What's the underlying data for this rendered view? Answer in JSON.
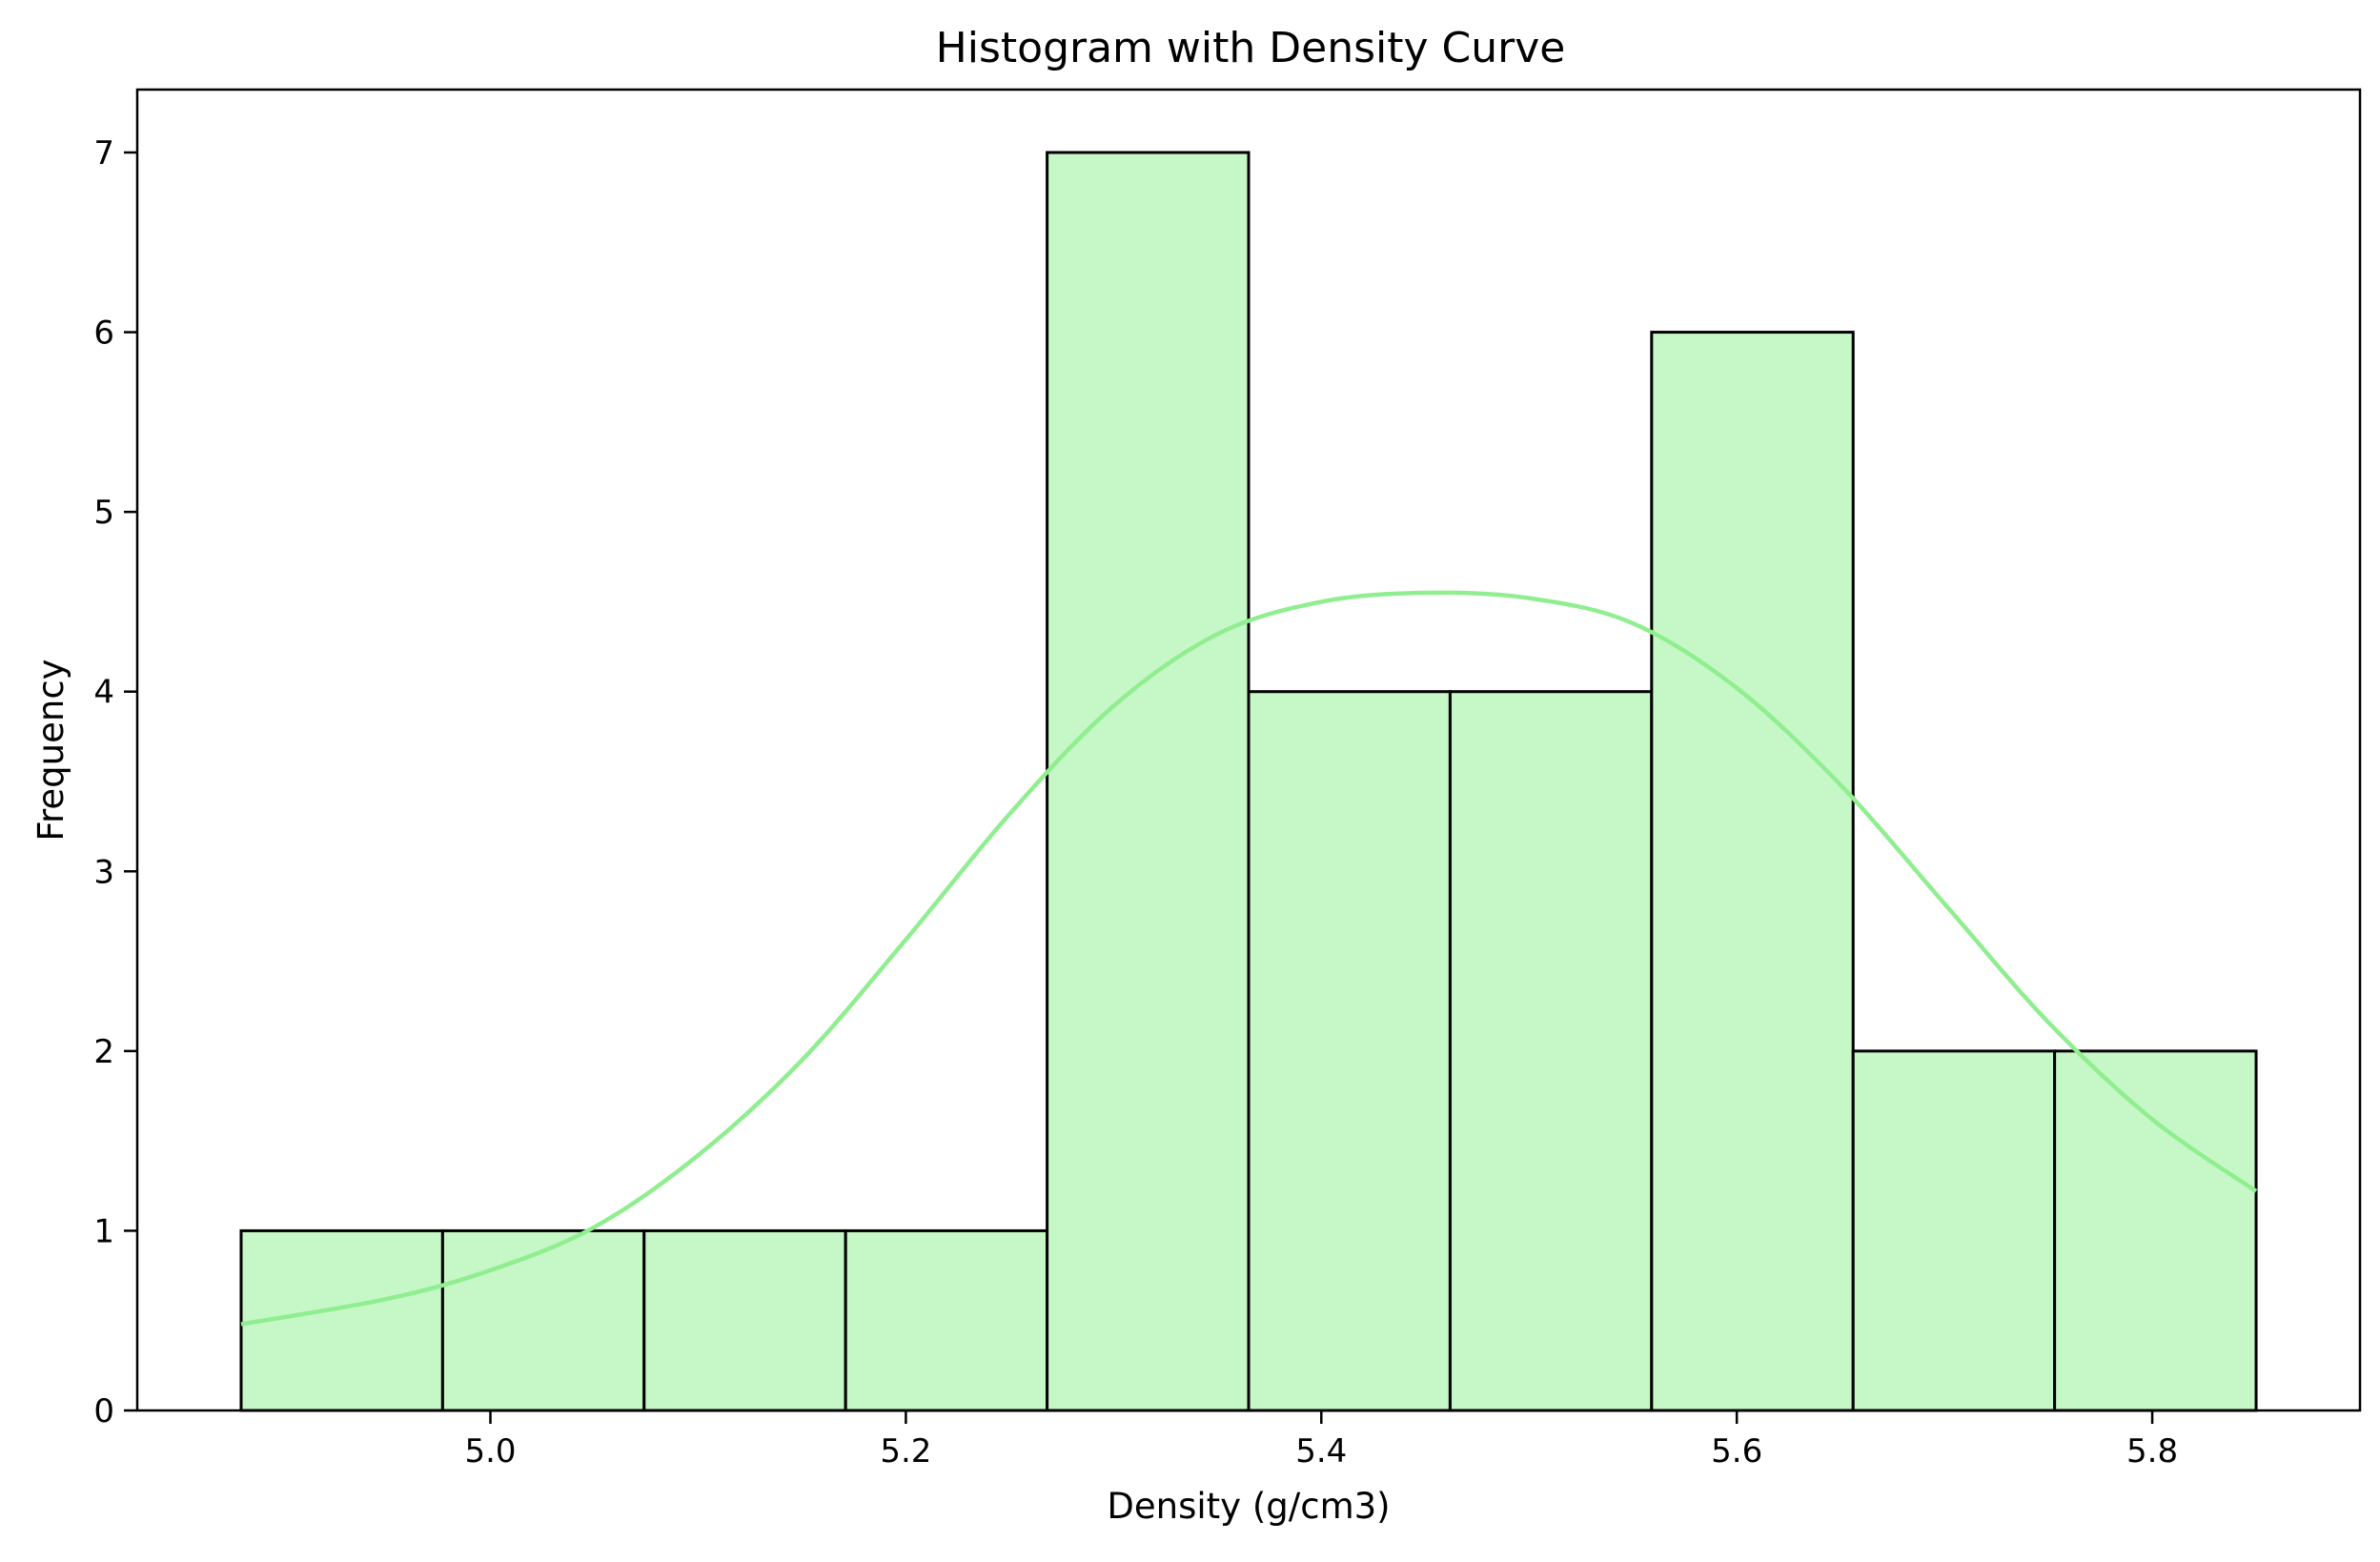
{
  "chart_data": {
    "type": "histogram",
    "title": "Histogram with Density Curve",
    "xlabel": "Density (g/cm3)",
    "ylabel": "Frequency",
    "xlim": [
      4.83,
      5.9
    ],
    "ylim": [
      0,
      7.35
    ],
    "xticks": [
      {
        "value": 5.0,
        "label": "5.0"
      },
      {
        "value": 5.2,
        "label": "5.2"
      },
      {
        "value": 5.4,
        "label": "5.4"
      },
      {
        "value": 5.6,
        "label": "5.6"
      },
      {
        "value": 5.8,
        "label": "5.8"
      }
    ],
    "yticks": [
      {
        "value": 0,
        "label": "0"
      },
      {
        "value": 1,
        "label": "1"
      },
      {
        "value": 2,
        "label": "2"
      },
      {
        "value": 3,
        "label": "3"
      },
      {
        "value": 4,
        "label": "4"
      },
      {
        "value": 5,
        "label": "5"
      },
      {
        "value": 6,
        "label": "6"
      },
      {
        "value": 7,
        "label": "7"
      }
    ],
    "bins": [
      {
        "x0": 4.88,
        "x1": 4.977,
        "count": 1
      },
      {
        "x0": 4.977,
        "x1": 5.074,
        "count": 1
      },
      {
        "x0": 5.074,
        "x1": 5.171,
        "count": 1
      },
      {
        "x0": 5.171,
        "x1": 5.268,
        "count": 1
      },
      {
        "x0": 5.268,
        "x1": 5.365,
        "count": 7
      },
      {
        "x0": 5.365,
        "x1": 5.462,
        "count": 4
      },
      {
        "x0": 5.462,
        "x1": 5.559,
        "count": 4
      },
      {
        "x0": 5.559,
        "x1": 5.656,
        "count": 6
      },
      {
        "x0": 5.656,
        "x1": 5.753,
        "count": 2
      },
      {
        "x0": 5.753,
        "x1": 5.85,
        "count": 2
      }
    ],
    "density_curve": {
      "x": [
        4.88,
        4.95,
        5.0,
        5.05,
        5.1,
        5.15,
        5.2,
        5.25,
        5.3,
        5.35,
        5.4,
        5.45,
        5.5,
        5.55,
        5.6,
        5.65,
        5.7,
        5.75,
        5.8,
        5.85
      ],
      "y": [
        0.48,
        0.62,
        0.78,
        1.02,
        1.42,
        1.95,
        2.62,
        3.32,
        3.92,
        4.32,
        4.5,
        4.55,
        4.52,
        4.38,
        4.02,
        3.48,
        2.82,
        2.16,
        1.62,
        1.22
      ]
    },
    "colors": {
      "bar_fill": "#c6f7c6",
      "bar_edge": "#000000",
      "curve": "#90ee90"
    },
    "grid": false,
    "legend": "none"
  }
}
